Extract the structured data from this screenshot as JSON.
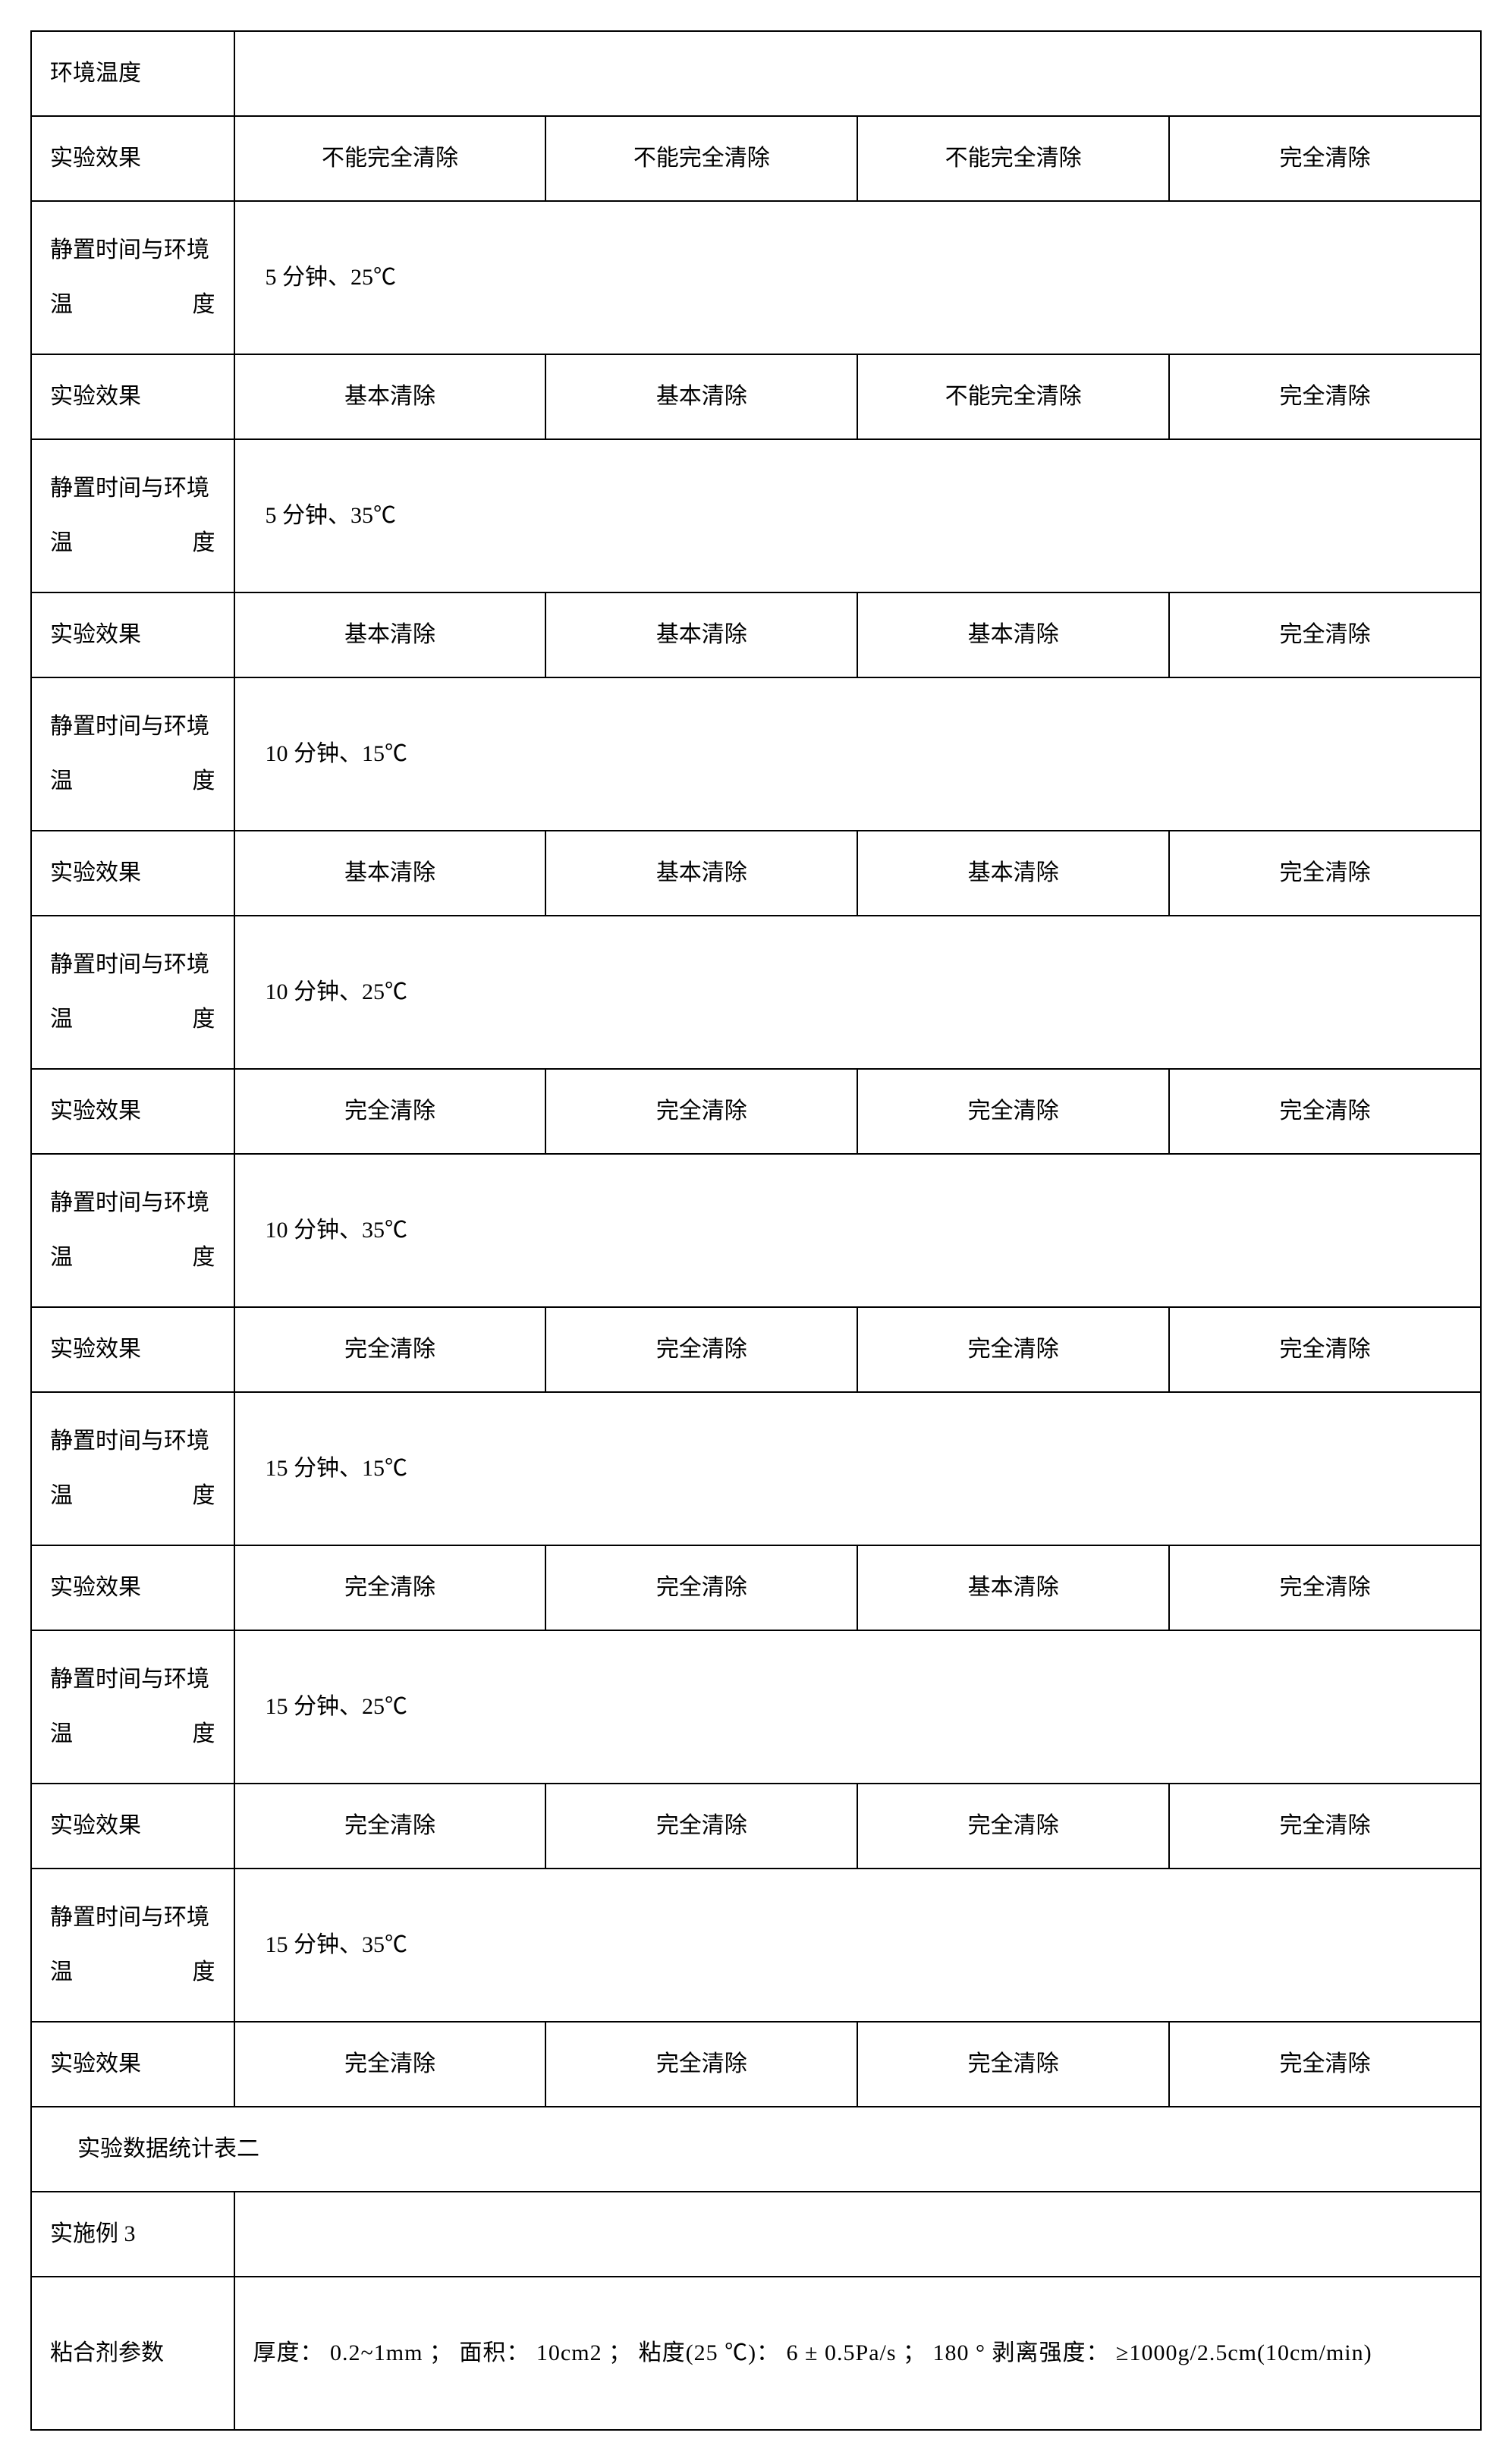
{
  "table": {
    "border_color": "#000000",
    "background_color": "#ffffff",
    "text_color": "#000000",
    "font_size_pt": 30,
    "columns_width_pct": [
      14,
      21.5,
      21.5,
      21.5,
      21.5
    ],
    "labels": {
      "env_temp": "环境温度",
      "effect": "实验效果",
      "settle_env": "静置时间与环境温度",
      "caption": "实验数据统计表二",
      "example3": "实施例 3",
      "adhesive_params": "粘合剂参数"
    },
    "conditions": {
      "c5_25": "5 分钟、25℃",
      "c5_35": "5 分钟、35℃",
      "c10_15": "10 分钟、15℃",
      "c10_25": "10 分钟、25℃",
      "c10_35": "10 分钟、35℃",
      "c15_15": "15 分钟、15℃",
      "c15_25": "15 分钟、25℃",
      "c15_35": "15 分钟、35℃"
    },
    "effects": {
      "r1": [
        "不能完全清除",
        "不能完全清除",
        "不能完全清除",
        "完全清除"
      ],
      "r2": [
        "基本清除",
        "基本清除",
        "不能完全清除",
        "完全清除"
      ],
      "r3": [
        "基本清除",
        "基本清除",
        "基本清除",
        "完全清除"
      ],
      "r4": [
        "基本清除",
        "基本清除",
        "基本清除",
        "完全清除"
      ],
      "r5": [
        "完全清除",
        "完全清除",
        "完全清除",
        "完全清除"
      ],
      "r6": [
        "完全清除",
        "完全清除",
        "完全清除",
        "完全清除"
      ],
      "r7": [
        "完全清除",
        "完全清除",
        "基本清除",
        "完全清除"
      ],
      "r8": [
        "完全清除",
        "完全清除",
        "完全清除",
        "完全清除"
      ],
      "r9": [
        "完全清除",
        "完全清除",
        "完全清除",
        "完全清除"
      ]
    },
    "adhesive_text": "厚度： 0.2~1mm ； 面积： 10cm2 ； 粘度(25 ℃)： 6 ± 0.5Pa/s ； 180 ° 剥离强度： ≥1000g/2.5cm(10cm/min)"
  }
}
